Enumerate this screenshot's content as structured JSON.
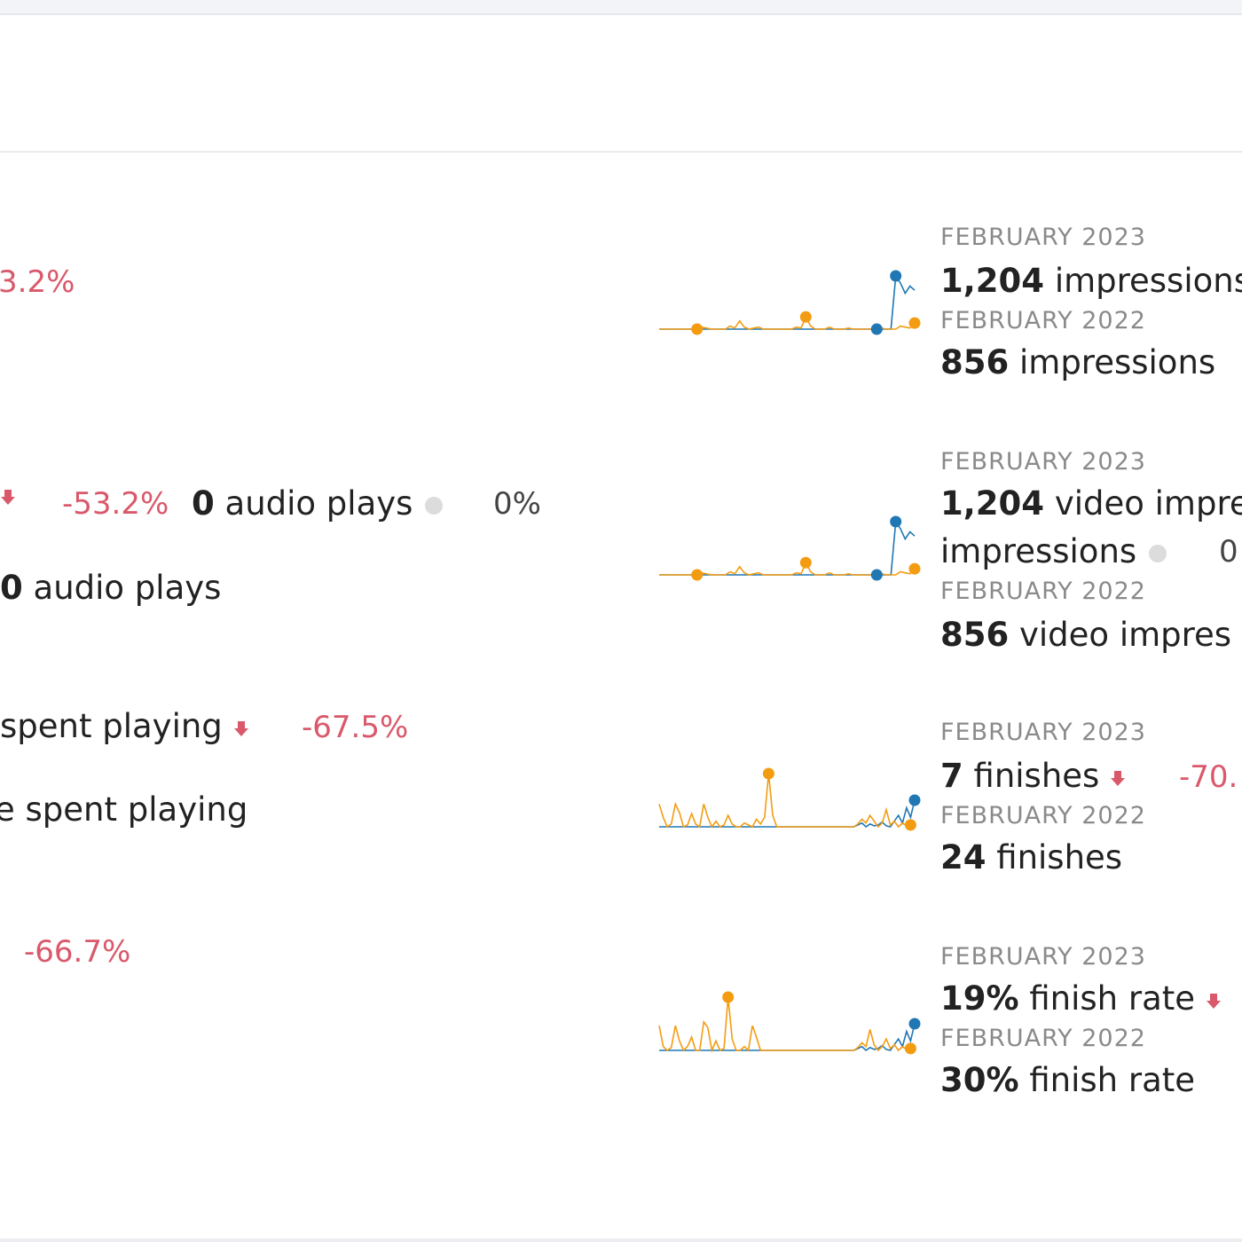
{
  "colors": {
    "current": "#1f77b4",
    "previous": "#f39c12",
    "negative": "#d9596b",
    "neutral_dot": "#dcdcdc"
  },
  "left_column": {
    "row1": {
      "change": "3.2%"
    },
    "row2": {
      "change": "-53.2%",
      "audio_count": "0",
      "audio_label": "audio plays",
      "audio_change": "0%",
      "prev_audio_count": "0",
      "prev_audio_label": "audio plays"
    },
    "row3": {
      "label": "spent playing",
      "change": "-67.5%",
      "prev_label": "e spent playing"
    },
    "row4": {
      "change": "-66.7%"
    }
  },
  "cards": [
    {
      "current_period": "FEBRUARY 2023",
      "current_value": "1,204",
      "current_label": "impressions",
      "previous_period": "FEBRUARY 2022",
      "previous_value": "856",
      "previous_label": "impressions"
    },
    {
      "current_period": "FEBRUARY 2023",
      "current_value": "1,204",
      "current_label": "video impre",
      "current_label_cont": "impressions",
      "current_change": "0",
      "previous_period": "FEBRUARY 2022",
      "previous_value": "856",
      "previous_label": "video impres"
    },
    {
      "current_period": "FEBRUARY 2023",
      "current_value": "7",
      "current_label": "finishes",
      "current_change": "-70.",
      "previous_period": "FEBRUARY 2022",
      "previous_value": "24",
      "previous_label": "finishes"
    },
    {
      "current_period": "FEBRUARY 2023",
      "current_value": "19%",
      "current_label": "finish rate",
      "previous_period": "FEBRUARY 2022",
      "previous_value": "30%",
      "previous_label": "finish rate"
    }
  ],
  "sparklines": [
    {
      "current": [
        0,
        0,
        0,
        0,
        0,
        0,
        0,
        0,
        0,
        0,
        0,
        0,
        0,
        0,
        0,
        0,
        0,
        0,
        0,
        0,
        0,
        0,
        0,
        0,
        0,
        0,
        0,
        0,
        0,
        0,
        0,
        0,
        0,
        0,
        0,
        0,
        0,
        0,
        0,
        0,
        0,
        0,
        0,
        0,
        0,
        0,
        0,
        0,
        0,
        0,
        52,
        45,
        35,
        42,
        38
      ],
      "previous": [
        0,
        0,
        0,
        0,
        0,
        0,
        0,
        0,
        0,
        2,
        1,
        0,
        0,
        0,
        0,
        3,
        1,
        8,
        2,
        0,
        1,
        2,
        0,
        0,
        0,
        0,
        0,
        0,
        0,
        2,
        1,
        12,
        3,
        0,
        0,
        0,
        2,
        0,
        0,
        0,
        1,
        0,
        0,
        0,
        0,
        0,
        2,
        1,
        0,
        0,
        0,
        3,
        2,
        1,
        6
      ],
      "current_markers": [
        46,
        50
      ],
      "previous_markers": [
        8,
        31,
        54
      ]
    },
    {
      "current": [
        0,
        0,
        0,
        0,
        0,
        0,
        0,
        0,
        0,
        0,
        0,
        0,
        0,
        0,
        0,
        0,
        0,
        0,
        0,
        0,
        0,
        0,
        0,
        0,
        0,
        0,
        0,
        0,
        0,
        0,
        0,
        0,
        0,
        0,
        0,
        0,
        0,
        0,
        0,
        0,
        0,
        0,
        0,
        0,
        0,
        0,
        0,
        0,
        0,
        0,
        52,
        45,
        35,
        42,
        38
      ],
      "previous": [
        0,
        0,
        0,
        0,
        0,
        0,
        0,
        0,
        0,
        2,
        1,
        0,
        0,
        0,
        0,
        3,
        1,
        8,
        2,
        0,
        1,
        2,
        0,
        0,
        0,
        0,
        0,
        0,
        0,
        2,
        1,
        12,
        3,
        0,
        0,
        0,
        2,
        0,
        0,
        0,
        1,
        0,
        0,
        0,
        0,
        0,
        2,
        1,
        0,
        0,
        0,
        3,
        2,
        1,
        6
      ],
      "current_markers": [
        46,
        50
      ],
      "previous_markers": [
        8,
        31,
        54
      ]
    },
    {
      "current": [
        0,
        0,
        0,
        0,
        0,
        0,
        0,
        0,
        0,
        0,
        0,
        0,
        0,
        0,
        0,
        0,
        0,
        0,
        0,
        0,
        0,
        0,
        0,
        0,
        0,
        0,
        0,
        0,
        0,
        0,
        0,
        0,
        0,
        0,
        0,
        0,
        0,
        0,
        0,
        0,
        0,
        0,
        0,
        0,
        0,
        0,
        0,
        0,
        0,
        2,
        4,
        0,
        3,
        1,
        2,
        5,
        1,
        0,
        6,
        12,
        4,
        20,
        10,
        28
      ],
      "previous": [
        24,
        10,
        0,
        3,
        24,
        15,
        0,
        2,
        14,
        3,
        0,
        24,
        10,
        0,
        6,
        0,
        2,
        12,
        3,
        0,
        0,
        4,
        2,
        0,
        8,
        3,
        10,
        56,
        12,
        0,
        0,
        0,
        0,
        0,
        0,
        0,
        0,
        0,
        0,
        0,
        0,
        0,
        0,
        0,
        0,
        0,
        0,
        0,
        0,
        3,
        8,
        4,
        12,
        6,
        0,
        4,
        18,
        2,
        6,
        0,
        4,
        1,
        2,
        0
      ],
      "current_markers": [
        63
      ],
      "previous_markers": [
        27,
        62
      ]
    },
    {
      "current": [
        0,
        0,
        0,
        0,
        0,
        0,
        0,
        0,
        0,
        0,
        0,
        0,
        0,
        0,
        0,
        0,
        0,
        0,
        0,
        0,
        0,
        0,
        0,
        0,
        0,
        0,
        0,
        0,
        0,
        0,
        0,
        0,
        0,
        0,
        0,
        0,
        0,
        0,
        0,
        0,
        0,
        0,
        0,
        0,
        0,
        0,
        0,
        0,
        0,
        2,
        4,
        0,
        3,
        1,
        2,
        5,
        1,
        0,
        6,
        12,
        4,
        20,
        10,
        28
      ],
      "previous": [
        26,
        4,
        0,
        3,
        26,
        10,
        0,
        4,
        14,
        0,
        0,
        30,
        24,
        0,
        10,
        0,
        2,
        56,
        12,
        0,
        0,
        4,
        0,
        26,
        14,
        0,
        0,
        0,
        0,
        0,
        0,
        0,
        0,
        0,
        0,
        0,
        0,
        0,
        0,
        0,
        0,
        0,
        0,
        0,
        0,
        0,
        0,
        0,
        0,
        3,
        8,
        4,
        22,
        6,
        0,
        4,
        12,
        2,
        6,
        0,
        4,
        1,
        2,
        0
      ],
      "current_markers": [
        63
      ],
      "previous_markers": [
        17,
        62
      ]
    }
  ]
}
